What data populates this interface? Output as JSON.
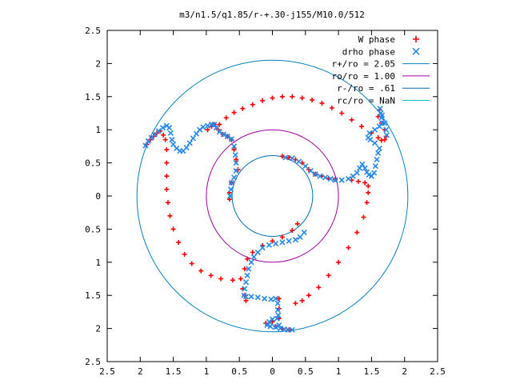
{
  "chart_data": {
    "type": "scatter",
    "title": "m3/n1.5/q1.85/r-+.30-j155/M10.0/512",
    "xlabel": "",
    "ylabel": "",
    "xlim": [
      -2.5,
      2.5
    ],
    "ylim": [
      -2.5,
      2.5
    ],
    "grid": false,
    "legend_position": "top-right",
    "x_ticks": [
      {
        "value": -2.5,
        "label": "2.5"
      },
      {
        "value": -2,
        "label": "2"
      },
      {
        "value": -1.5,
        "label": "1.5"
      },
      {
        "value": -1,
        "label": "1"
      },
      {
        "value": -0.5,
        "label": "0.5"
      },
      {
        "value": 0,
        "label": "0"
      },
      {
        "value": 0.5,
        "label": "0.5"
      },
      {
        "value": 1,
        "label": "1"
      },
      {
        "value": 1.5,
        "label": "1.5"
      },
      {
        "value": 2,
        "label": "2"
      },
      {
        "value": 2.5,
        "label": "2.5"
      }
    ],
    "y_ticks": [
      {
        "value": 2.5,
        "label": "2.5"
      },
      {
        "value": 2,
        "label": "2"
      },
      {
        "value": 1.5,
        "label": "1.5"
      },
      {
        "value": 1,
        "label": "1"
      },
      {
        "value": 0.5,
        "label": "0.5"
      },
      {
        "value": 0,
        "label": "0"
      },
      {
        "value": -0.5,
        "label": "0.5"
      },
      {
        "value": -1,
        "label": "1"
      },
      {
        "value": -1.5,
        "label": "1.5"
      },
      {
        "value": -2,
        "label": "2"
      },
      {
        "value": -2.5,
        "label": "2.5"
      }
    ],
    "circles": [
      {
        "name": "r+/ro = 2.05",
        "radius": 2.05,
        "color": "#0080c0"
      },
      {
        "name": "ro/ro = 1.00",
        "radius": 1.0,
        "color": "#a000a0"
      },
      {
        "name": "r-/ro = .61",
        "radius": 0.61,
        "color": "#0070b0"
      },
      {
        "name": "rc/ro = NaN",
        "radius": null,
        "color": "#00c0c0"
      }
    ],
    "series": [
      {
        "name": "W phase",
        "marker": "+",
        "color": "#ff0000",
        "points": [
          [
            -1.9,
            0.78
          ],
          [
            -1.85,
            0.85
          ],
          [
            -1.8,
            0.9
          ],
          [
            -1.75,
            0.95
          ],
          [
            -1.7,
            0.98
          ],
          [
            -1.65,
            0.92
          ],
          [
            -1.62,
            0.85
          ],
          [
            -1.6,
            0.7
          ],
          [
            -1.6,
            0.5
          ],
          [
            -1.6,
            0.3
          ],
          [
            -1.6,
            0.1
          ],
          [
            -1.58,
            -0.1
          ],
          [
            -1.55,
            -0.3
          ],
          [
            -1.5,
            -0.5
          ],
          [
            -1.42,
            -0.7
          ],
          [
            -1.33,
            -0.88
          ],
          [
            -1.22,
            -1.02
          ],
          [
            -1.08,
            -1.13
          ],
          [
            -0.93,
            -1.2
          ],
          [
            -0.78,
            -1.25
          ],
          [
            -0.6,
            -1.27
          ],
          [
            -0.48,
            -1.25
          ],
          [
            -0.42,
            -1.1
          ],
          [
            -0.38,
            -0.95
          ],
          [
            -0.3,
            -0.85
          ],
          [
            -0.15,
            -0.75
          ],
          [
            0,
            -0.68
          ],
          [
            0.15,
            -0.62
          ],
          [
            0.3,
            -0.52
          ],
          [
            0.38,
            -0.42
          ],
          [
            -0.45,
            -1.4
          ],
          [
            -0.42,
            -1.5
          ],
          [
            -0.4,
            -1.58
          ],
          [
            0.1,
            -1.55
          ],
          [
            0.1,
            -1.7
          ],
          [
            0.1,
            -1.85
          ],
          [
            0.0,
            -1.9
          ],
          [
            -0.1,
            -1.92
          ],
          [
            0.05,
            -1.97
          ],
          [
            0.15,
            -2.0
          ],
          [
            0.25,
            -2.02
          ],
          [
            0.35,
            -1.62
          ],
          [
            0.45,
            -1.58
          ],
          [
            0.55,
            -1.5
          ],
          [
            0.7,
            -1.38
          ],
          [
            0.85,
            -1.2
          ],
          [
            1.0,
            -1.0
          ],
          [
            1.15,
            -0.78
          ],
          [
            1.28,
            -0.55
          ],
          [
            1.38,
            -0.32
          ],
          [
            1.43,
            -0.1
          ],
          [
            1.45,
            0.05
          ],
          [
            1.45,
            0.15
          ],
          [
            1.4,
            0.2
          ],
          [
            1.3,
            0.22
          ],
          [
            1.2,
            0.24
          ],
          [
            -0.98,
            1.0
          ],
          [
            -0.92,
            1.05
          ],
          [
            -0.88,
            1.08
          ],
          [
            -0.82,
            1.0
          ],
          [
            -0.75,
            0.93
          ],
          [
            -0.68,
            0.9
          ],
          [
            -0.62,
            0.85
          ],
          [
            -0.58,
            0.7
          ],
          [
            -0.55,
            0.55
          ],
          [
            -0.52,
            0.4
          ],
          [
            -0.62,
            0.2
          ],
          [
            -0.65,
            0.05
          ],
          [
            -0.65,
            -0.05
          ],
          [
            0.15,
            0.6
          ],
          [
            0.25,
            0.58
          ],
          [
            0.35,
            0.55
          ],
          [
            0.45,
            0.5
          ],
          [
            0.55,
            0.4
          ],
          [
            0.65,
            0.33
          ],
          [
            0.75,
            0.3
          ],
          [
            0.85,
            0.27
          ],
          [
            0.95,
            0.25
          ],
          [
            -0.8,
            1.08
          ],
          [
            -0.7,
            1.18
          ],
          [
            -0.58,
            1.26
          ],
          [
            -0.45,
            1.32
          ],
          [
            -0.3,
            1.38
          ],
          [
            -0.15,
            1.44
          ],
          [
            0,
            1.48
          ],
          [
            0.15,
            1.5
          ],
          [
            0.3,
            1.5
          ],
          [
            0.45,
            1.48
          ],
          [
            0.6,
            1.45
          ],
          [
            0.75,
            1.4
          ],
          [
            0.9,
            1.33
          ],
          [
            1.05,
            1.25
          ],
          [
            1.2,
            1.15
          ],
          [
            1.35,
            1.05
          ],
          [
            1.5,
            0.95
          ],
          [
            1.6,
            0.88
          ],
          [
            1.65,
            0.84
          ],
          [
            1.62,
            1.3
          ],
          [
            1.6,
            1.2
          ],
          [
            1.65,
            1.1
          ],
          [
            1.7,
            1.0
          ],
          [
            1.72,
            0.9
          ],
          [
            1.7,
            0.85
          ]
        ]
      },
      {
        "name": "drho phase",
        "marker": "x",
        "color": "#2288ee",
        "points": [
          [
            -1.92,
            0.76
          ],
          [
            -1.88,
            0.83
          ],
          [
            -1.83,
            0.88
          ],
          [
            -1.78,
            0.93
          ],
          [
            -1.72,
            0.98
          ],
          [
            -1.66,
            1.03
          ],
          [
            -1.6,
            1.06
          ],
          [
            -1.56,
            1.03
          ],
          [
            -1.54,
            0.95
          ],
          [
            -1.52,
            0.85
          ],
          [
            -1.5,
            0.78
          ],
          [
            -1.45,
            0.72
          ],
          [
            -1.4,
            0.68
          ],
          [
            -1.35,
            0.68
          ],
          [
            -1.3,
            0.73
          ],
          [
            -1.25,
            0.8
          ],
          [
            -1.2,
            0.87
          ],
          [
            -1.15,
            0.94
          ],
          [
            -1.1,
            1.0
          ],
          [
            -1.05,
            1.04
          ],
          [
            -0.98,
            1.06
          ],
          [
            -0.92,
            1.08
          ],
          [
            -0.88,
            1.08
          ],
          [
            -0.85,
            1.03
          ],
          [
            -0.8,
            0.97
          ],
          [
            -0.74,
            0.93
          ],
          [
            -0.68,
            0.9
          ],
          [
            -0.62,
            0.86
          ],
          [
            -0.58,
            0.75
          ],
          [
            -0.56,
            0.62
          ],
          [
            -0.55,
            0.5
          ],
          [
            -0.55,
            0.38
          ],
          [
            -0.58,
            0.28
          ],
          [
            -0.62,
            0.2
          ],
          [
            -0.63,
            0.1
          ],
          [
            -0.64,
            0.0
          ],
          [
            0.2,
            0.58
          ],
          [
            0.3,
            0.57
          ],
          [
            0.4,
            0.52
          ],
          [
            0.5,
            0.45
          ],
          [
            0.58,
            0.38
          ],
          [
            0.65,
            0.33
          ],
          [
            0.72,
            0.3
          ],
          [
            0.8,
            0.28
          ],
          [
            0.88,
            0.26
          ],
          [
            0.95,
            0.24
          ],
          [
            1.05,
            0.24
          ],
          [
            1.15,
            0.26
          ],
          [
            1.22,
            0.3
          ],
          [
            1.28,
            0.35
          ],
          [
            1.32,
            0.42
          ],
          [
            1.36,
            0.48
          ],
          [
            1.4,
            0.42
          ],
          [
            1.43,
            0.36
          ],
          [
            1.46,
            0.32
          ],
          [
            1.5,
            0.3
          ],
          [
            1.54,
            0.35
          ],
          [
            1.56,
            0.45
          ],
          [
            1.58,
            0.55
          ],
          [
            1.6,
            0.65
          ],
          [
            1.62,
            0.72
          ],
          [
            1.55,
            0.8
          ],
          [
            1.48,
            0.85
          ],
          [
            1.45,
            0.88
          ],
          [
            1.47,
            0.95
          ],
          [
            1.55,
            1.0
          ],
          [
            1.62,
            1.05
          ],
          [
            1.66,
            1.1
          ],
          [
            1.65,
            1.18
          ],
          [
            1.64,
            1.25
          ],
          [
            1.63,
            1.32
          ],
          [
            1.66,
            1.22
          ],
          [
            1.7,
            1.1
          ],
          [
            1.72,
            1.0
          ],
          [
            1.73,
            0.92
          ],
          [
            0.48,
            -0.55
          ],
          [
            0.42,
            -0.62
          ],
          [
            0.35,
            -0.66
          ],
          [
            0.25,
            -0.68
          ],
          [
            0.15,
            -0.7
          ],
          [
            0.05,
            -0.72
          ],
          [
            -0.05,
            -0.74
          ],
          [
            -0.15,
            -0.78
          ],
          [
            -0.22,
            -0.85
          ],
          [
            -0.28,
            -0.92
          ],
          [
            -0.32,
            -1.0
          ],
          [
            -0.36,
            -1.1
          ],
          [
            -0.38,
            -1.2
          ],
          [
            -0.4,
            -1.3
          ],
          [
            -0.42,
            -1.4
          ],
          [
            -0.43,
            -1.5
          ],
          [
            -0.4,
            -1.52
          ],
          [
            -0.32,
            -1.52
          ],
          [
            -0.22,
            -1.53
          ],
          [
            -0.12,
            -1.55
          ],
          [
            -0.02,
            -1.56
          ],
          [
            0.05,
            -1.55
          ],
          [
            0.08,
            -1.62
          ],
          [
            0.08,
            -1.72
          ],
          [
            0.09,
            -1.8
          ],
          [
            0.07,
            -1.85
          ],
          [
            0.0,
            -1.86
          ],
          [
            -0.05,
            -1.9
          ],
          [
            -0.08,
            -1.95
          ],
          [
            -0.03,
            -1.97
          ],
          [
            0.05,
            -1.98
          ],
          [
            0.12,
            -2.0
          ],
          [
            0.18,
            -2.01
          ],
          [
            0.24,
            -2.02
          ],
          [
            0.3,
            -2.02
          ],
          [
            0.1,
            -1.95
          ]
        ]
      }
    ]
  }
}
